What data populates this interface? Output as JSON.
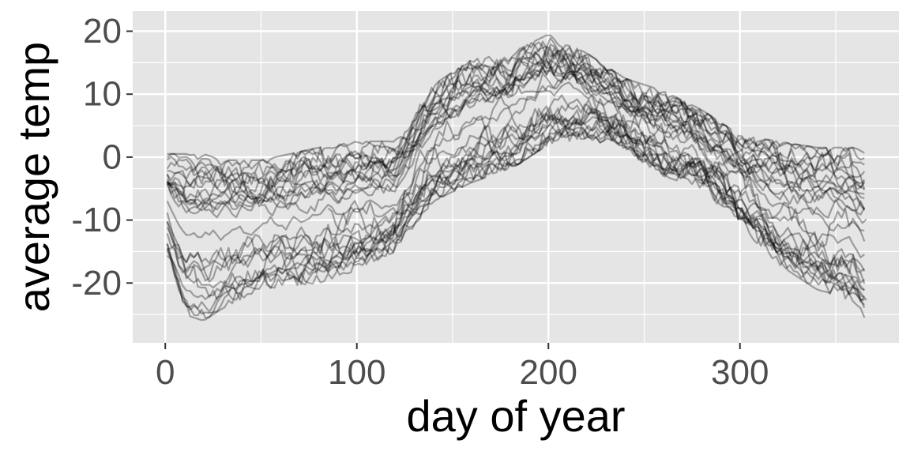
{
  "chart_data": {
    "type": "line",
    "title": "",
    "xlabel": "day of year",
    "ylabel": "average temp",
    "xlim": [
      -17,
      383
    ],
    "ylim": [
      -29.5,
      23.2
    ],
    "x_ticks": [
      0,
      100,
      200,
      300
    ],
    "x_tick_labels": [
      "0",
      "100",
      "200",
      "300"
    ],
    "y_ticks": [
      -20,
      -10,
      0,
      10,
      20
    ],
    "y_tick_labels": [
      "-20",
      "-10",
      "0",
      "10",
      "20"
    ],
    "grid": true,
    "line_color": "#000000",
    "line_opacity": 0.32,
    "background_color": "#e5e5e5",
    "grid_color": "#ffffff",
    "series_count": 32,
    "x_range": [
      1,
      366
    ],
    "envelope": {
      "days": [
        0,
        10,
        20,
        30,
        50,
        80,
        100,
        120,
        140,
        160,
        180,
        200,
        220,
        240,
        260,
        280,
        300,
        320,
        340,
        360,
        366
      ],
      "upper": [
        0,
        0,
        0,
        -1,
        -1,
        1,
        2,
        2,
        11,
        15,
        16,
        19,
        16,
        12,
        10,
        7,
        3,
        2,
        1,
        1,
        0
      ],
      "lower": [
        -14,
        -24,
        -25,
        -23,
        -20,
        -19,
        -17,
        -14,
        -6,
        -3,
        -1,
        3,
        4,
        2,
        -2,
        -4,
        -10,
        -16,
        -20,
        -22,
        -25
      ]
    },
    "annotations": []
  }
}
